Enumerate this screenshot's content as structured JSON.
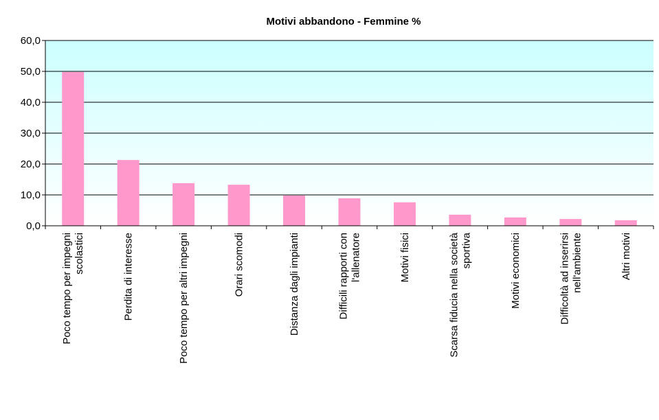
{
  "chart_data": {
    "type": "bar",
    "title": "Motivi abbandono - Femmine %",
    "categories": [
      "Poco tempo per impegni\nscolastici",
      "Perdita di interesse",
      "Poco tempo per altri impegni",
      "Orari scomodi",
      "Distanza dagli impianti",
      "Difficili rapporti con\nl'allenatore",
      "Motivi fisici",
      "Scarsa fiducia nella società\nsportiva",
      "Motivi economici",
      "Difficoltà ad inserirsi\nnell'ambiente",
      "Altri motivi"
    ],
    "values": [
      49.8,
      21.3,
      13.8,
      13.3,
      9.8,
      8.9,
      7.6,
      3.6,
      2.7,
      2.2,
      1.8
    ],
    "color": "#ff99cc",
    "ylim": [
      0,
      60
    ],
    "yticks": [
      {
        "value": 0,
        "label": "0,0"
      },
      {
        "value": 10,
        "label": "10,0"
      },
      {
        "value": 20,
        "label": "20,0"
      },
      {
        "value": 30,
        "label": "30,0"
      },
      {
        "value": 40,
        "label": "40,0"
      },
      {
        "value": 50,
        "label": "50,0"
      },
      {
        "value": 60,
        "label": "60,0"
      }
    ],
    "grid": true
  }
}
